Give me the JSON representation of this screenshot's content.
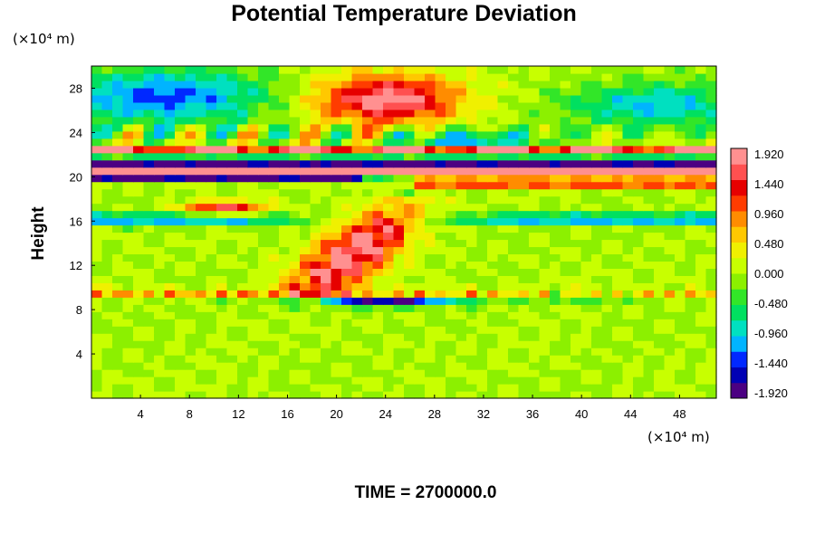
{
  "chart_data": {
    "type": "heatmap",
    "title": "Potential Temperature Deviation",
    "xlabel": "",
    "ylabel": "Height",
    "x_unit": "(×10⁴ m)",
    "y_unit": "(×10⁴ m)",
    "xlim": [
      0,
      51
    ],
    "ylim": [
      0,
      30
    ],
    "xticks": [
      4,
      8,
      12,
      16,
      20,
      24,
      28,
      32,
      36,
      40,
      44,
      48
    ],
    "xtick_labels": [
      "4",
      "8",
      "12",
      "16",
      "20",
      "24",
      "28",
      "32",
      "36",
      "40",
      "44",
      "48"
    ],
    "yticks": [
      4,
      8,
      12,
      16,
      20,
      24,
      28
    ],
    "ytick_labels": [
      "4",
      "8",
      "12",
      "16",
      "20",
      "24",
      "28"
    ],
    "colorbar": {
      "min": -1.92,
      "max": 1.92,
      "labels": [
        "1.920",
        "1.440",
        "0.960",
        "0.480",
        "0.000",
        "-0.480",
        "-0.960",
        "-1.440",
        "-1.920"
      ],
      "colors": [
        "#4b0082",
        "#0000b4",
        "#0028ff",
        "#00b4ff",
        "#00e0c0",
        "#00e060",
        "#32e628",
        "#8cf000",
        "#c8ff00",
        "#f0f000",
        "#ffc800",
        "#ff8c00",
        "#ff3c00",
        "#e60000",
        "#ff5050",
        "#ff9090"
      ]
    },
    "footer": "TIME = 2700000.0"
  }
}
